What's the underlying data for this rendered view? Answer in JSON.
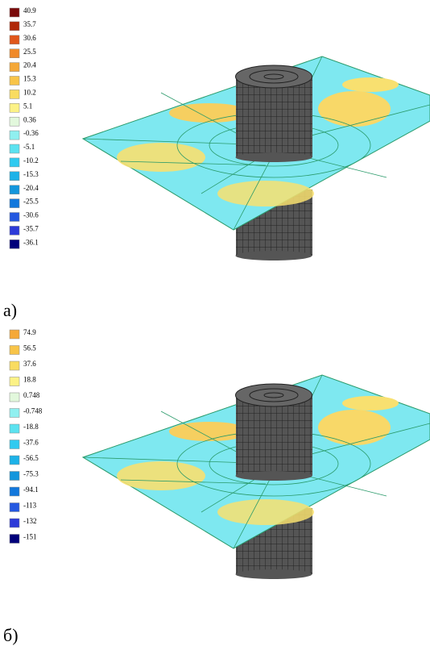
{
  "panels": [
    {
      "label": "a)",
      "legend": [
        {
          "label": "40.9",
          "color": "#7a0a0a"
        },
        {
          "label": "35.7",
          "color": "#b02808"
        },
        {
          "label": "30.6",
          "color": "#e0561a"
        },
        {
          "label": "25.5",
          "color": "#f08a2a"
        },
        {
          "label": "20.4",
          "color": "#f5a838"
        },
        {
          "label": "15.3",
          "color": "#f8c448"
        },
        {
          "label": "10.2",
          "color": "#f9dc60"
        },
        {
          "label": "5.1",
          "color": "#fcf286"
        },
        {
          "label": "0.36",
          "color": "#e2f8dc"
        },
        {
          "label": "-0.36",
          "color": "#90f0f0"
        },
        {
          "label": "-5.1",
          "color": "#5ce2f0"
        },
        {
          "label": "-10.2",
          "color": "#30caf0"
        },
        {
          "label": "-15.3",
          "color": "#1cb2e8"
        },
        {
          "label": "-20.4",
          "color": "#1496dc"
        },
        {
          "label": "-25.5",
          "color": "#1278dc"
        },
        {
          "label": "-30.6",
          "color": "#2458e0"
        },
        {
          "label": "-35.7",
          "color": "#2c3ad8"
        },
        {
          "label": "-36.1",
          "color": "#00007a"
        }
      ]
    },
    {
      "label": "б)",
      "legend": [
        {
          "label": "74.9",
          "color": "#f5a838"
        },
        {
          "label": "56.5",
          "color": "#f8c448"
        },
        {
          "label": "37.6",
          "color": "#f9dc60"
        },
        {
          "label": "18.8",
          "color": "#fcf286"
        },
        {
          "label": "0.748",
          "color": "#e2f8dc"
        },
        {
          "label": "-0.748",
          "color": "#90f0f0"
        },
        {
          "label": "-18.8",
          "color": "#5ce2f0"
        },
        {
          "label": "-37.6",
          "color": "#30caf0"
        },
        {
          "label": "-56.5",
          "color": "#1cb2e8"
        },
        {
          "label": "-75.3",
          "color": "#1496dc"
        },
        {
          "label": "-94.1",
          "color": "#1278dc"
        },
        {
          "label": "-113",
          "color": "#2458e0"
        },
        {
          "label": "-132",
          "color": "#2c3ad8"
        },
        {
          "label": "-151",
          "color": "#00007a"
        }
      ]
    }
  ]
}
